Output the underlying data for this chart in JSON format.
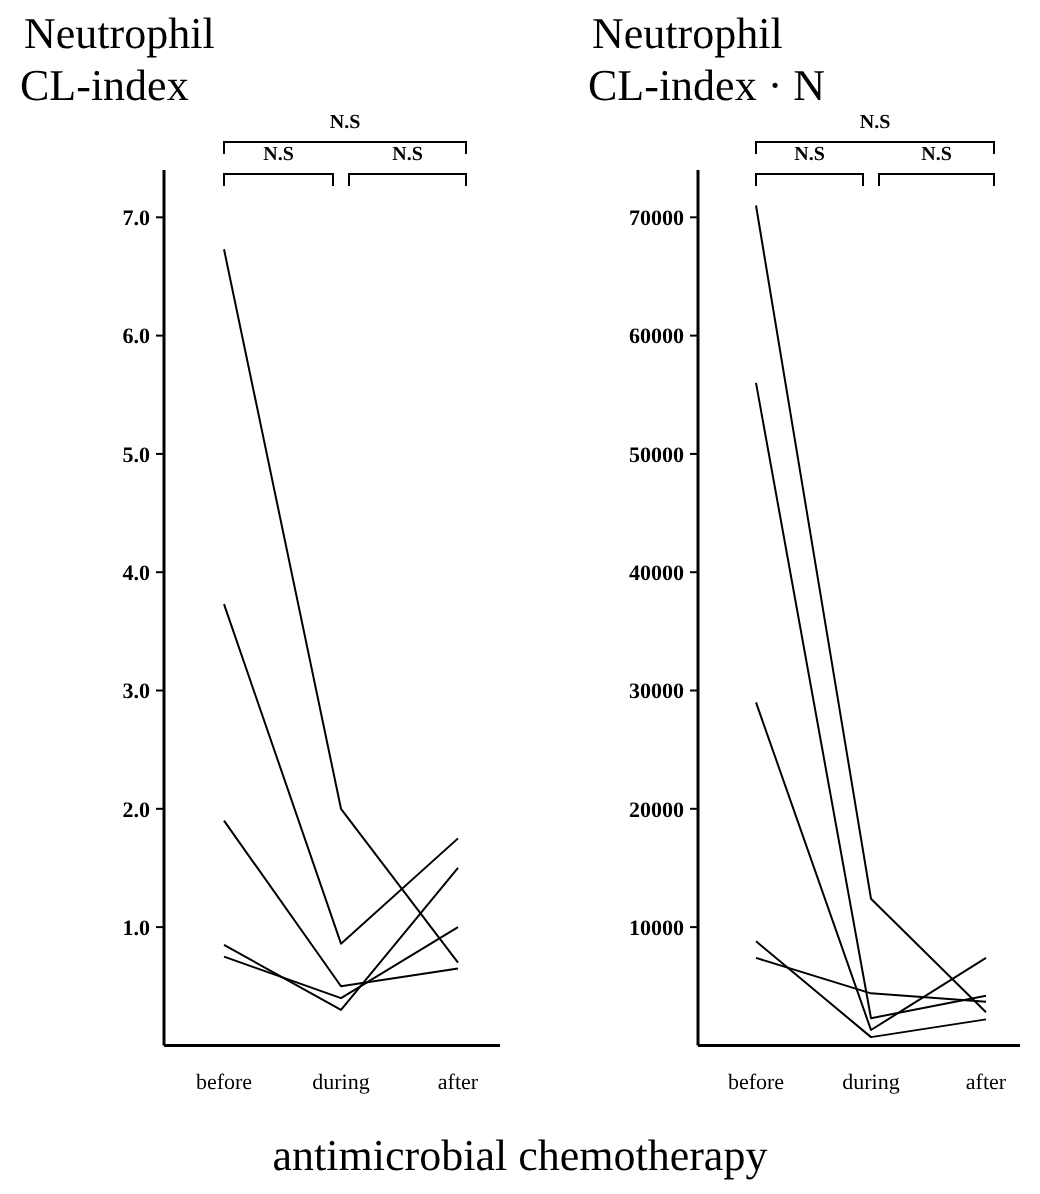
{
  "chart_data": [
    {
      "type": "line",
      "ylabel": "Neutrophil CL-index",
      "xlabel": "antimicrobial chemotherapy",
      "categories": [
        "before",
        "during",
        "after"
      ],
      "ylim": [
        0,
        7.4
      ],
      "yticks": [
        {
          "value": 1,
          "label": "1.0"
        },
        {
          "value": 2,
          "label": "2.0"
        },
        {
          "value": 3,
          "label": "3.0"
        },
        {
          "value": 4,
          "label": "4.0"
        },
        {
          "value": 5,
          "label": "5.0"
        },
        {
          "value": 6,
          "label": "6.0"
        },
        {
          "value": 7,
          "label": "7.0"
        }
      ],
      "grid": false,
      "marker": "none",
      "line_style": "solid",
      "annotations": [
        "N.S",
        "N.S",
        "N.S"
      ],
      "series": [
        {
          "color": "#000000",
          "values": [
            6.73,
            2.0,
            0.7
          ]
        },
        {
          "color": "#000000",
          "values": [
            3.73,
            0.86,
            1.75
          ]
        },
        {
          "color": "#000000",
          "values": [
            1.9,
            0.5,
            0.65
          ]
        },
        {
          "color": "#000000",
          "values": [
            0.85,
            0.3,
            1.5
          ]
        },
        {
          "color": "#000000",
          "values": [
            0.75,
            0.4,
            1.0
          ]
        }
      ]
    },
    {
      "type": "line",
      "ylabel": "Neutrophil CL-index · N",
      "categories": [
        "before",
        "during",
        "after"
      ],
      "ylim": [
        0,
        74000
      ],
      "yticks": [
        10000,
        20000,
        30000,
        40000,
        50000,
        60000,
        70000
      ],
      "grid": false,
      "marker": "none",
      "line_style": "solid",
      "annotations": [
        "N.S",
        "N.S",
        "N.S"
      ],
      "series": [
        {
          "color": "#000000",
          "values": [
            71000,
            12400,
            2800
          ]
        },
        {
          "color": "#000000",
          "values": [
            56000,
            2300,
            4200
          ]
        },
        {
          "color": "#000000",
          "values": [
            29000,
            1300,
            7400
          ]
        },
        {
          "color": "#000000",
          "values": [
            8800,
            700,
            2200
          ]
        },
        {
          "color": "#000000",
          "values": [
            7400,
            4400,
            3700
          ]
        }
      ]
    }
  ]
}
